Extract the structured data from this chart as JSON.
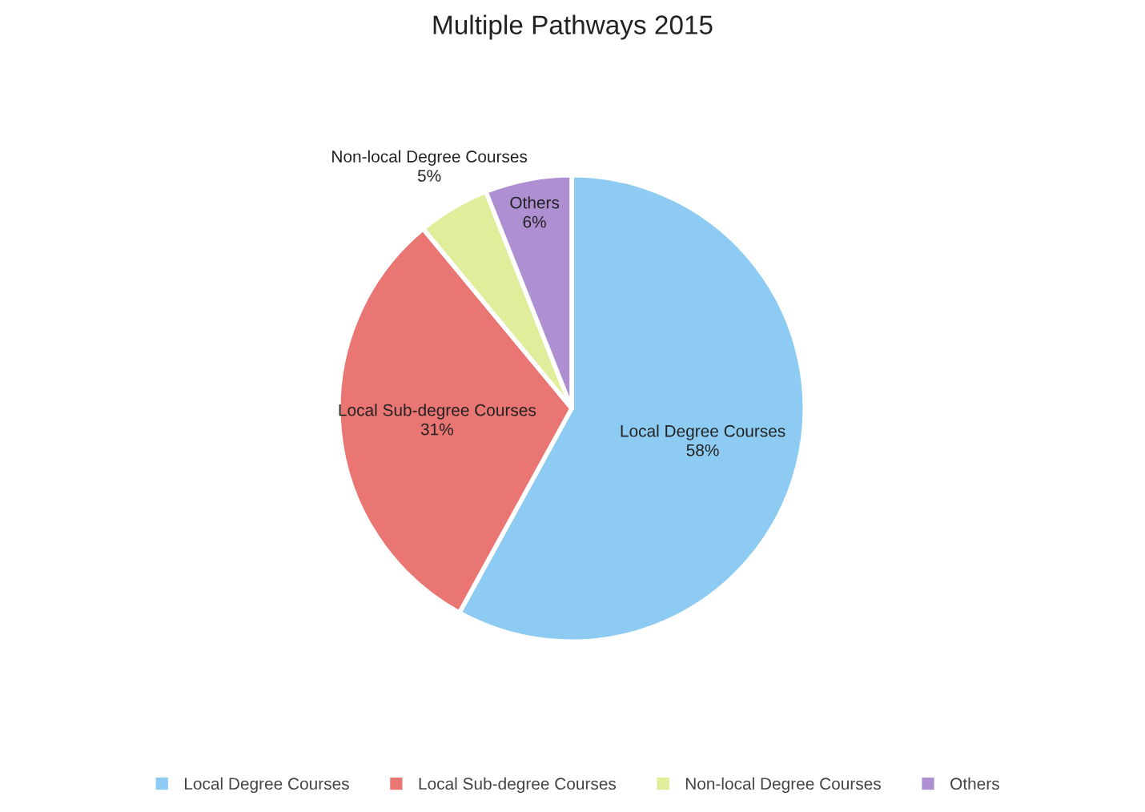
{
  "chart_data": {
    "type": "pie",
    "title": "Multiple Pathways 2015",
    "categories": [
      "Local Degree Courses",
      "Local Sub-degree Courses",
      "Non-local Degree Courses",
      "Others"
    ],
    "values": [
      58,
      31,
      5,
      6
    ],
    "colors": [
      "#8ecbf2",
      "#e97672",
      "#e0ee9b",
      "#ad8fd2"
    ],
    "value_labels": [
      "58%",
      "31%",
      "5%",
      "6%"
    ],
    "legend": "bottom"
  }
}
